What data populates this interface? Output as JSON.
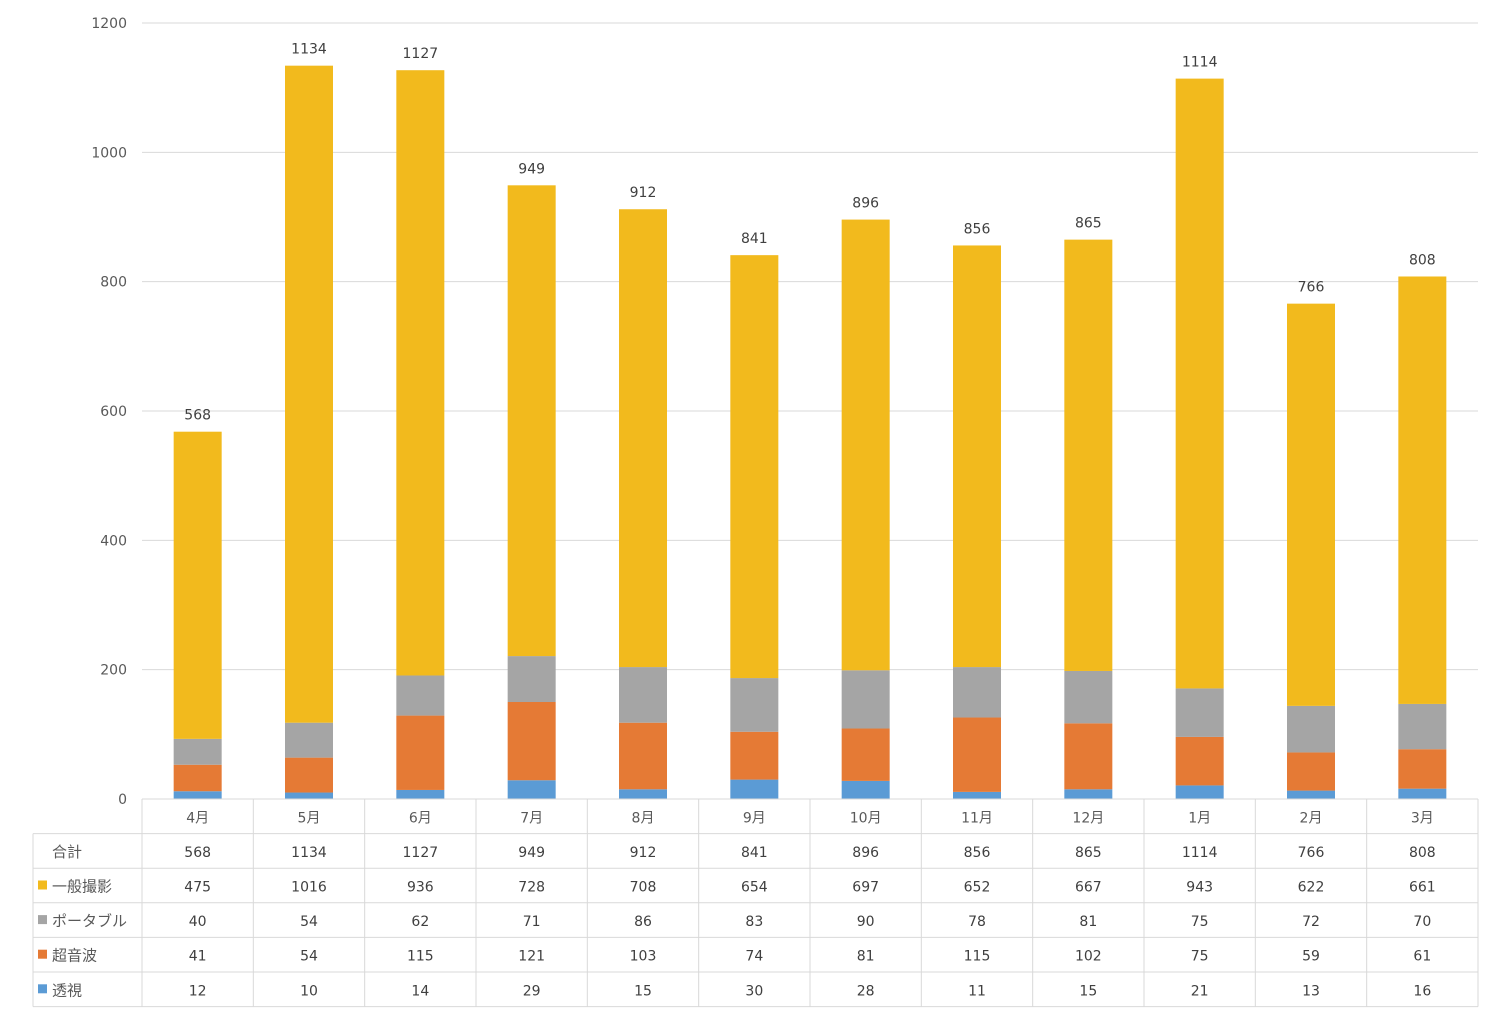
{
  "chart_data": {
    "type": "bar",
    "stacked": true,
    "categories": [
      "4月",
      "5月",
      "6月",
      "7月",
      "8月",
      "9月",
      "10月",
      "11月",
      "12月",
      "1月",
      "2月",
      "3月"
    ],
    "totals": {
      "name": "合計",
      "values": [
        568,
        1134,
        1127,
        949,
        912,
        841,
        896,
        856,
        865,
        1114,
        766,
        808
      ]
    },
    "series": [
      {
        "name": "一般撮影",
        "color": "#F2BA1D",
        "values": [
          475,
          1016,
          936,
          728,
          708,
          654,
          697,
          652,
          667,
          943,
          622,
          661
        ]
      },
      {
        "name": "ポータブル",
        "color": "#A5A5A5",
        "values": [
          40,
          54,
          62,
          71,
          86,
          83,
          90,
          78,
          81,
          75,
          72,
          70
        ]
      },
      {
        "name": "超音波",
        "color": "#E57A35",
        "values": [
          41,
          54,
          115,
          121,
          103,
          74,
          81,
          115,
          102,
          75,
          59,
          61
        ]
      },
      {
        "name": "透視",
        "color": "#5B9BD5",
        "values": [
          12,
          10,
          14,
          29,
          15,
          30,
          28,
          11,
          15,
          21,
          13,
          16
        ]
      }
    ],
    "stack_order": [
      "透視",
      "超音波",
      "ポータブル",
      "一般撮影"
    ],
    "yticks": [
      0,
      200,
      400,
      600,
      800,
      1000,
      1200
    ],
    "ylim": [
      0,
      1200
    ],
    "grid": true,
    "legend": "data-table",
    "title": "",
    "xlabel": "",
    "ylabel": ""
  }
}
